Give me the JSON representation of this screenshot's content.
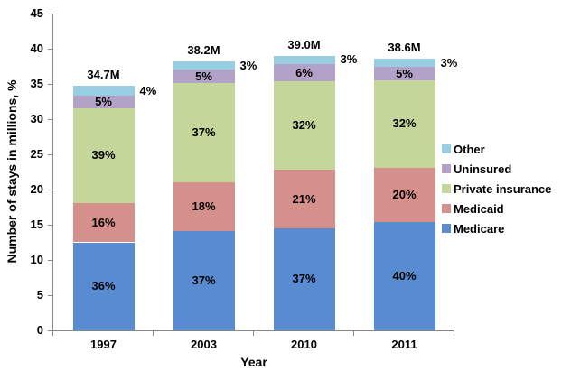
{
  "chart_data": {
    "type": "bar",
    "stacked": true,
    "title": "",
    "xlabel": "Year",
    "ylabel": "Number of stays in millions, %",
    "ylim": [
      0,
      45
    ],
    "yticks": [
      0,
      5,
      10,
      15,
      20,
      25,
      30,
      35,
      40,
      45
    ],
    "grid": false,
    "legend_position": "right",
    "legend_order_top_to_bottom": [
      "Other",
      "Uninsured",
      "Private insurance",
      "Medicaid",
      "Medicare"
    ],
    "categories": [
      "1997",
      "2003",
      "2010",
      "2011"
    ],
    "totals": {
      "labels": [
        "34.7M",
        "38.2M",
        "39.0M",
        "38.6M"
      ],
      "millions": [
        34.7,
        38.2,
        39.0,
        38.6
      ]
    },
    "series": [
      {
        "name": "Medicare",
        "color": "#588BD0",
        "pct_labels": [
          "36%",
          "37%",
          "37%",
          "40%"
        ],
        "millions": [
          12.5,
          14.1,
          14.5,
          15.4
        ]
      },
      {
        "name": "Medicaid",
        "color": "#D6908C",
        "pct_labels": [
          "16%",
          "18%",
          "21%",
          "20%"
        ],
        "millions": [
          5.6,
          6.9,
          8.3,
          7.7
        ]
      },
      {
        "name": "Private insurance",
        "color": "#C5D69B",
        "pct_labels": [
          "39%",
          "37%",
          "32%",
          "32%"
        ],
        "millions": [
          13.5,
          14.1,
          12.6,
          12.4
        ]
      },
      {
        "name": "Uninsured",
        "color": "#B2A2C7",
        "pct_labels": [
          "5%",
          "5%",
          "6%",
          "5%"
        ],
        "millions": [
          1.7,
          1.9,
          2.4,
          1.9
        ]
      },
      {
        "name": "Other",
        "color": "#98CEE1",
        "pct_labels": [
          "4%",
          "3%",
          "3%",
          "3%"
        ],
        "millions": [
          1.4,
          1.2,
          1.2,
          1.2
        ]
      }
    ],
    "outside_label_series": "Other"
  },
  "colors": {
    "axis": "#888888",
    "text": "#000000",
    "background": "#FFFFFF"
  }
}
